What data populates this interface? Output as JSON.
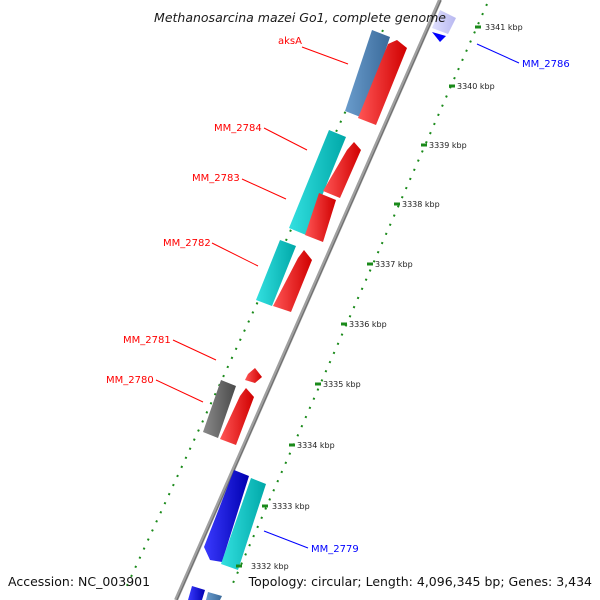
{
  "title": "Methanosarcina mazei Go1, complete genome",
  "footer": {
    "accession": "Accession: NC_003901",
    "summary": "Topology: circular; Length: 4,096,345 bp; Genes: 3,434"
  },
  "ticks": [
    "3341 kbp",
    "3340 kbp",
    "3339 kbp",
    "3338 kbp",
    "3337 kbp",
    "3336 kbp",
    "3335 kbp",
    "3334 kbp",
    "3333 kbp",
    "3332 kbp"
  ],
  "gene_labels": [
    {
      "text": "aksA",
      "color": "#ff0000"
    },
    {
      "text": "MM_2784",
      "color": "#ff0000"
    },
    {
      "text": "MM_2783",
      "color": "#ff0000"
    },
    {
      "text": "MM_2782",
      "color": "#ff0000"
    },
    {
      "text": "MM_2781",
      "color": "#ff0000"
    },
    {
      "text": "MM_2780",
      "color": "#ff0000"
    },
    {
      "text": "MM_2786",
      "color": "#0000ff"
    },
    {
      "text": "MM_2779",
      "color": "#0000ff"
    }
  ],
  "colors": {
    "backbone": "#9a9a9a",
    "forward_cds": "#ff0000",
    "reverse_cds_cyan": "#00c8c8",
    "reverse_cds_blue": "#0000ff",
    "reverse_cds_steel": "#4a7fb5",
    "gray_feature": "#666666",
    "ticks": "#1a8a1a"
  }
}
